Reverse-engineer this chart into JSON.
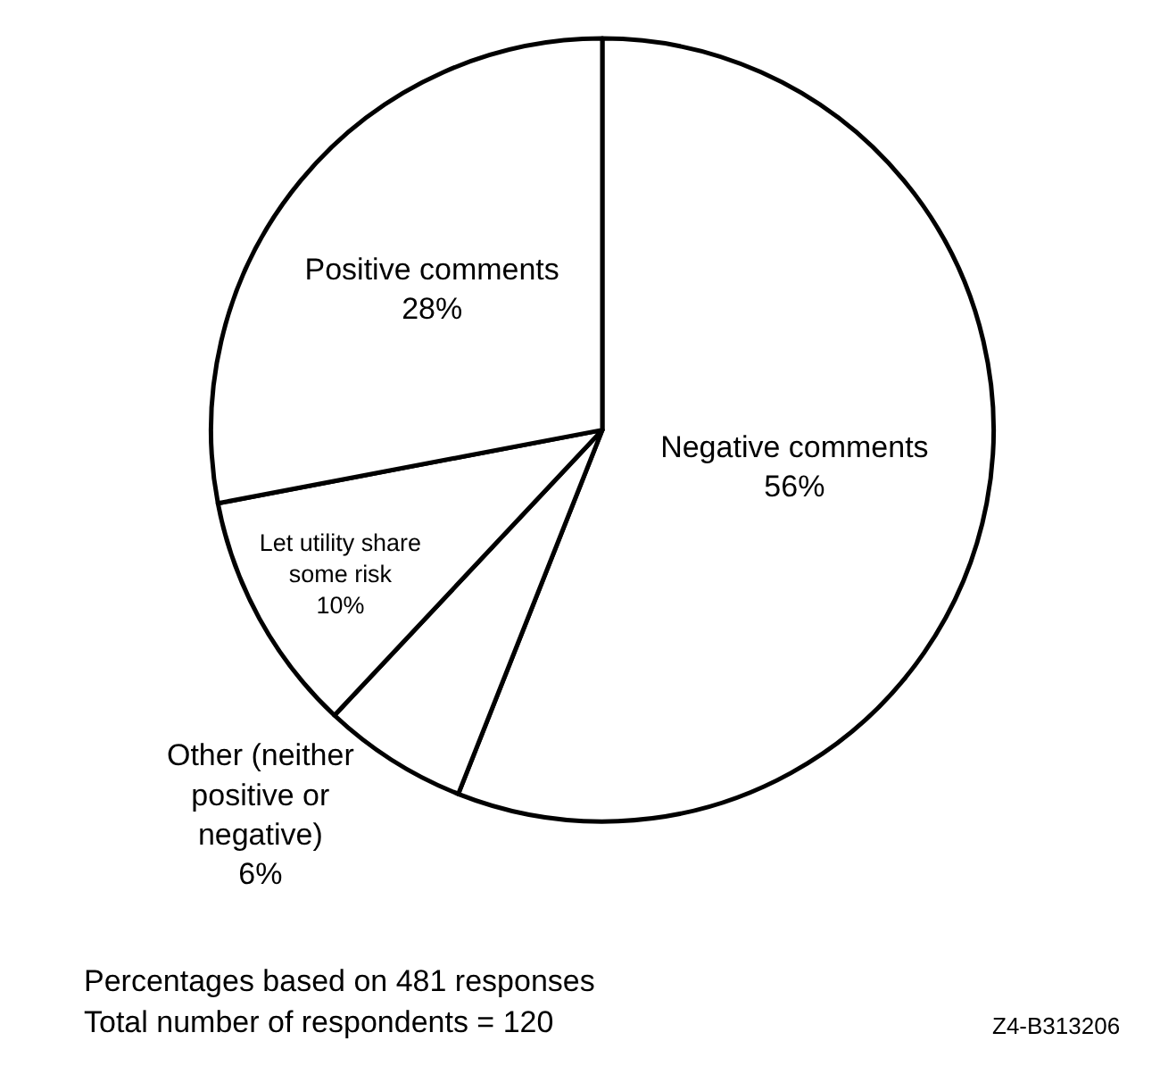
{
  "chart_data": {
    "type": "pie",
    "categories": [
      "Negative comments",
      "Other (neither positive or negative)",
      "Let utility share some risk",
      "Positive comments"
    ],
    "values": [
      56,
      6,
      10,
      28
    ],
    "value_labels": [
      "56%",
      "6%",
      "10%",
      "28%"
    ],
    "colors": [
      "#ffffff",
      "#ffffff",
      "#ffffff",
      "#ffffff"
    ],
    "legend": false,
    "annotations": [
      "Percentages based on 481 responses",
      "Total number of respondents = 120",
      "Z4-B313206"
    ]
  }
}
